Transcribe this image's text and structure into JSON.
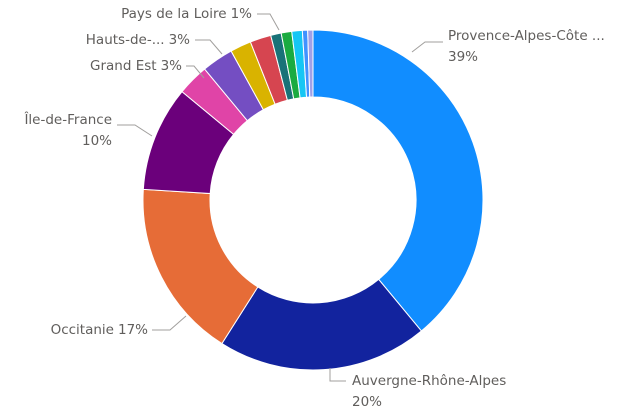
{
  "chart_data": {
    "type": "donut",
    "categories": [
      "Provence-Alpes-Côte ...",
      "Auvergne-Rhône-Alpes",
      "Occitanie",
      "Île-de-France",
      "Grand Est",
      "Hauts-de-...",
      null,
      null,
      "Pays de la Loire",
      null,
      null,
      null,
      null
    ],
    "values": [
      39,
      20,
      17,
      10,
      3,
      3,
      2,
      2,
      1,
      1,
      1,
      0.5,
      0.5
    ],
    "value_labels": [
      "39%",
      "20%",
      "17%",
      "10%",
      "3%",
      "3%",
      null,
      null,
      "1%",
      null,
      null,
      null,
      null
    ],
    "colors": [
      "#118DFF",
      "#12239E",
      "#E66C37",
      "#6B007B",
      "#E044A7",
      "#744EC2",
      "#D9B300",
      "#D64550",
      "#197278",
      "#1AAB40",
      "#15C6F4",
      "#4092FF",
      "#A0A0E8"
    ]
  }
}
